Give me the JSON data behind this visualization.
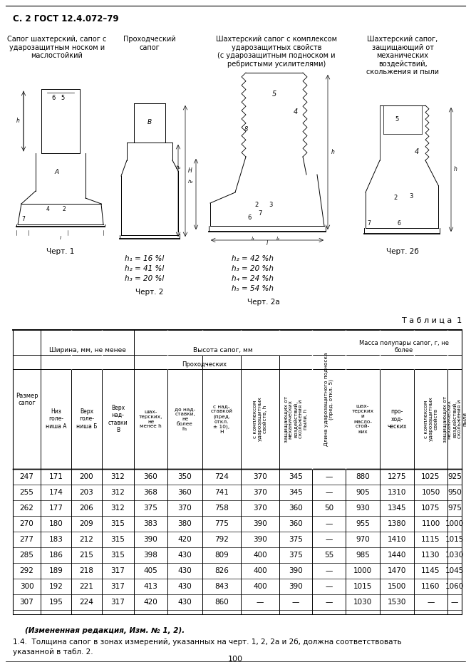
{
  "title": "С. 2 ГОСТ 12.4.072–79",
  "page_number": "100",
  "section_headers": [
    "Сапог шахтерский, сапог с\nударозащитным носком и\nмаслостойкий",
    "Проходческий\nсапог",
    "Шахтерский сапог с комплексом\nударозащитных свойств\n(с ударозащитным подноском и\nребристыми усилителями)",
    "Шахтерский сапог,\nзащищающий от\nмеханических\nвоздействий,\nскольжения и пыли"
  ],
  "drawing_labels": [
    "Черт. 1",
    "Черт. 2",
    "Черт. 2а",
    "Черт. 2б"
  ],
  "formulas_chert2": [
    "h₁ = 16 %l",
    "h₂ = 41 %l",
    "h₃ = 20 %l"
  ],
  "formulas_chert2a": [
    "h₂ = 42 %h",
    "h₃ = 20 %h",
    "h₄ = 24 %h",
    "h₅ = 54 %h"
  ],
  "table_title": "Т а б л и ц а  1",
  "table_data": [
    [
      247,
      171,
      200,
      312,
      360,
      350,
      724,
      370,
      345,
      "—",
      880,
      1275,
      1025,
      925
    ],
    [
      255,
      174,
      203,
      312,
      368,
      360,
      741,
      370,
      345,
      "—",
      905,
      1310,
      1050,
      950
    ],
    [
      262,
      177,
      206,
      312,
      375,
      370,
      758,
      370,
      360,
      50,
      930,
      1345,
      1075,
      975
    ],
    [
      270,
      180,
      209,
      315,
      383,
      380,
      775,
      390,
      360,
      "—",
      955,
      1380,
      1100,
      1000
    ],
    [
      277,
      183,
      212,
      315,
      390,
      420,
      792,
      390,
      375,
      "—",
      970,
      1410,
      1115,
      1015
    ],
    [
      285,
      186,
      215,
      315,
      398,
      430,
      809,
      400,
      375,
      55,
      985,
      1440,
      1130,
      1030
    ],
    [
      292,
      189,
      218,
      317,
      405,
      430,
      826,
      400,
      390,
      "—",
      1000,
      1470,
      1145,
      1045
    ],
    [
      300,
      192,
      221,
      317,
      413,
      430,
      843,
      400,
      390,
      "—",
      1015,
      1500,
      1160,
      1060
    ],
    [
      307,
      195,
      224,
      317,
      420,
      430,
      860,
      "—",
      "—",
      "—",
      1030,
      1530,
      "—",
      "—"
    ]
  ],
  "note_bold": "(Измененная редакция, Изм. № 1, 2).",
  "note_text": "1.4.  Толщина сапог в зонах измерений, указанных на черт. 1, 2, 2а и 2б, должна соответствовать",
  "note_text2": "указанной в табл. 2."
}
